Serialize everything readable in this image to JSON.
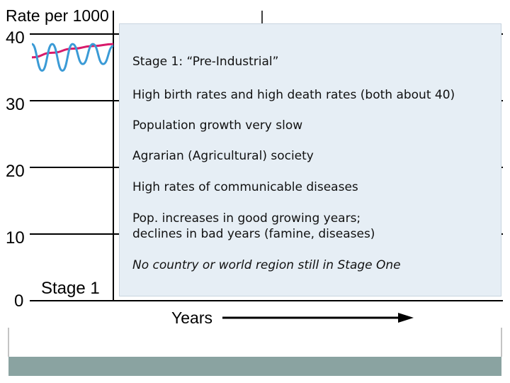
{
  "chart_data": {
    "type": "line",
    "ylabel": "Rate per 1000",
    "xlabel": "Years",
    "ylim": [
      0,
      40
    ],
    "yticks": [
      "0",
      "10",
      "20",
      "30",
      "40"
    ],
    "stage_label": "Stage 1",
    "series": [
      {
        "color": "#d81b6b",
        "x": [
          0,
          1,
          2,
          3,
          4
        ],
        "values": [
          36.5,
          37.2,
          37.8,
          38.2,
          38.5
        ]
      },
      {
        "color": "#3b9bd6",
        "x": [
          0,
          0.5,
          1,
          1.5,
          2,
          2.5,
          3,
          3.5,
          4
        ],
        "values": [
          38.5,
          34.5,
          38.5,
          34.5,
          38.5,
          35.5,
          38.5,
          35.5,
          38.2
        ]
      }
    ]
  },
  "overlay": {
    "title": "Stage 1:  “Pre-Industrial”",
    "bullet1": "High birth rates and high death rates (both about 40)",
    "bullet2": "Population growth very slow",
    "bullet3": "Agrarian (Agricultural) society",
    "bullet4": "High rates of communicable diseases",
    "bullet5_line1": "Pop. increases in good growing years;",
    "bullet5_line2": "declines in bad years (famine, diseases)",
    "note": "No country or world region still in Stage One"
  },
  "colors": {
    "overlay_bg": "#e6eef5",
    "footer_bar": "#8aa3a1"
  }
}
